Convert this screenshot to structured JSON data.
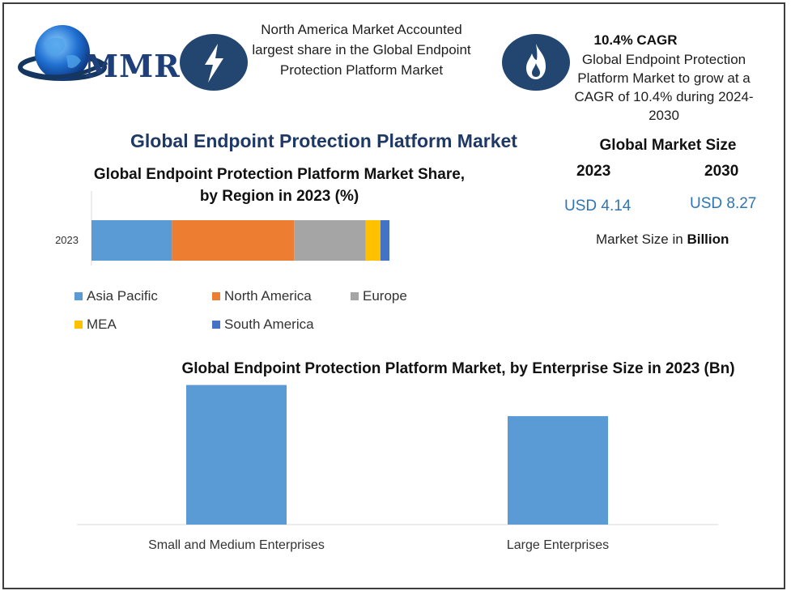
{
  "brand": {
    "logo_text": "MMR"
  },
  "highlights": {
    "region_text": "North America Market Accounted largest share in the Global Endpoint Protection Platform Market",
    "cagr_title": "10.4% CAGR",
    "cagr_text": "Global Endpoint Protection Platform Market to grow at a CAGR of 10.4% during 2024-2030"
  },
  "main_title": "Global Endpoint Protection Platform Market",
  "market_size": {
    "title": "Global Market Size",
    "year_start": "2023",
    "year_end": "2030",
    "value_start": "USD 4.14",
    "value_end": "USD 8.27",
    "unit_prefix": "Market Size in",
    "unit_bold": "Billion"
  },
  "chart_data": [
    {
      "type": "bar",
      "orientation": "horizontal",
      "stacked": true,
      "title": "Global Endpoint Protection Platform Market Share, by Region in 2023 (%)",
      "categories": [
        "2023"
      ],
      "series": [
        {
          "name": "Asia Pacific",
          "values": [
            27
          ],
          "color": "#5b9bd5"
        },
        {
          "name": "North America",
          "values": [
            41
          ],
          "color": "#ed7d31"
        },
        {
          "name": "Europe",
          "values": [
            24
          ],
          "color": "#a5a5a5"
        },
        {
          "name": "MEA",
          "values": [
            5
          ],
          "color": "#ffc000"
        },
        {
          "name": "South America",
          "values": [
            3
          ],
          "color": "#4472c4"
        }
      ],
      "xlim": [
        0,
        100
      ],
      "legend": "bottom",
      "grid": false
    },
    {
      "type": "bar",
      "title": "Global Endpoint Protection Platform Market, by Enterprise Size in 2023 (Bn)",
      "categories": [
        "Small and Medium Enterprises",
        "Large Enterprises"
      ],
      "values": [
        2.33,
        1.81
      ],
      "ylim": [
        0,
        2.5
      ],
      "color": "#5b9bd5",
      "grid": false
    }
  ]
}
